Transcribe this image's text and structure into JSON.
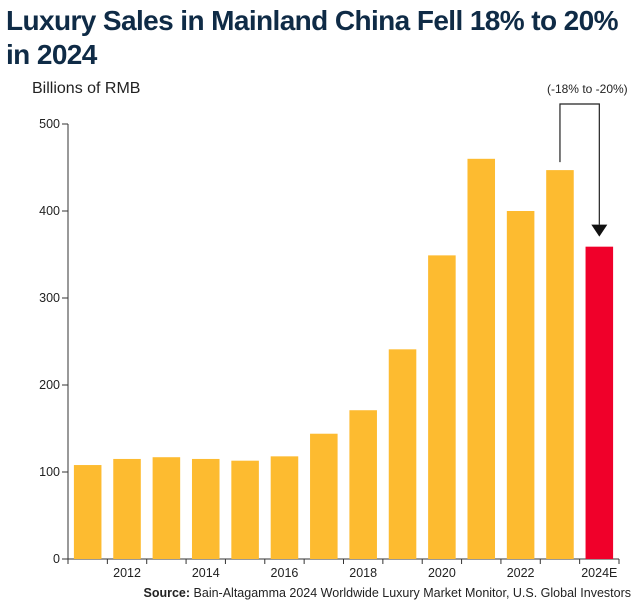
{
  "chart_data": {
    "type": "bar",
    "title": "Luxury Sales in Mainland China Fell 18% to 20% in 2024",
    "ylabel": "Billions of RMB",
    "xlabel": "",
    "categories": [
      "2011",
      "2012",
      "2013",
      "2014",
      "2015",
      "2016",
      "2017",
      "2018",
      "2019",
      "2020",
      "2021",
      "2022",
      "2023",
      "2024E"
    ],
    "x_tick_labels": [
      "",
      "2012",
      "",
      "2014",
      "",
      "2016",
      "",
      "2018",
      "",
      "2020",
      "",
      "2022",
      "",
      "2024E"
    ],
    "values": [
      108,
      115,
      117,
      115,
      113,
      118,
      144,
      171,
      241,
      349,
      460,
      400,
      447,
      359
    ],
    "ylim": [
      0,
      500
    ],
    "yticks": [
      0,
      100,
      200,
      300,
      400,
      500
    ],
    "grid": false,
    "colors": {
      "bar": "#FDBB30",
      "highlight": "#F0002A"
    },
    "highlight_index": 13,
    "annotation": {
      "text": "(-18% to -20%)",
      "from_index": 12,
      "to_index": 13
    }
  },
  "source": {
    "label": "Source:",
    "text": "Bain-Altagamma 2024 Worldwide Luxury Market Monitor, U.S. Global Investors"
  }
}
